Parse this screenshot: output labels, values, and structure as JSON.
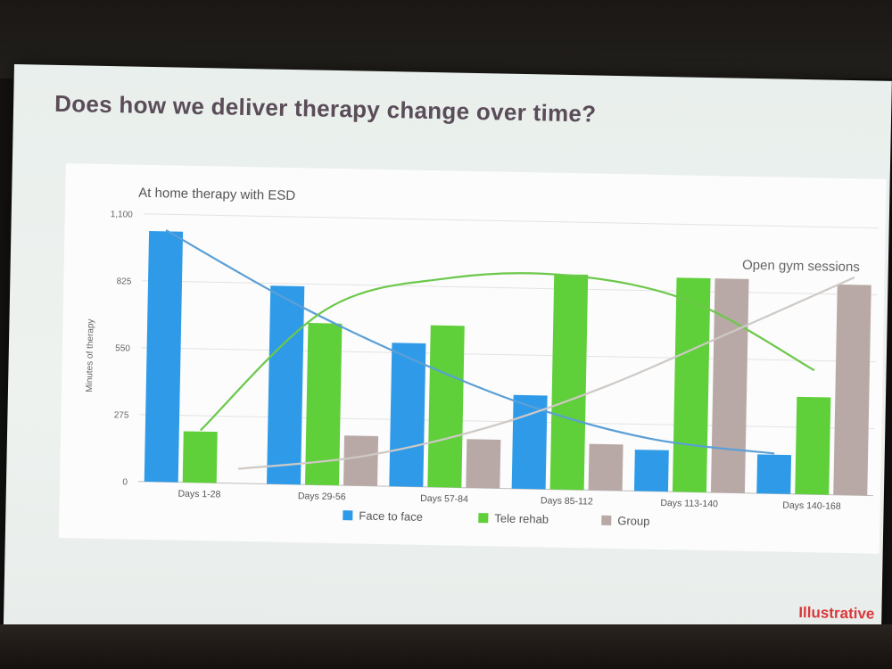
{
  "slide": {
    "title": "Does how we deliver therapy change over time?",
    "footer_note": "Illustrative"
  },
  "chart_data": {
    "type": "bar",
    "title": "At home therapy with ESD",
    "ylabel": "Minutes of therapy",
    "xlabel": "",
    "ylim": [
      0,
      1100
    ],
    "yticks": [
      0,
      275,
      550,
      825,
      1100
    ],
    "ytick_labels": [
      "0",
      "275",
      "550",
      "825",
      "1,100"
    ],
    "grid": true,
    "legend_position": "bottom",
    "categories": [
      "Days 1-28",
      "Days 29-56",
      "Days 57-84",
      "Days 85-112",
      "Days 113-140",
      "Days 140-168"
    ],
    "series": [
      {
        "name": "Face to face",
        "color": "#2f9be8",
        "values": [
          1030,
          815,
          590,
          385,
          170,
          160
        ]
      },
      {
        "name": "Tele rehab",
        "color": "#5fcf3a",
        "values": [
          210,
          665,
          665,
          885,
          880,
          400
        ]
      },
      {
        "name": "Group",
        "color": "#b8a9a6",
        "values": [
          0,
          205,
          200,
          190,
          880,
          865
        ]
      }
    ],
    "trendlines": [
      {
        "series": "Face to face",
        "color": "#5b9fd6",
        "values": [
          1035,
          760,
          530,
          340,
          215,
          165
        ]
      },
      {
        "series": "Tele rehab",
        "color": "#6cc84a",
        "values": [
          215,
          720,
          860,
          880,
          780,
          510
        ]
      },
      {
        "series": "Group",
        "color": "#cfc9c6",
        "values": [
          60,
          120,
          245,
          430,
          660,
          895
        ]
      }
    ],
    "annotations": [
      {
        "text": "Open gym sessions"
      }
    ]
  }
}
